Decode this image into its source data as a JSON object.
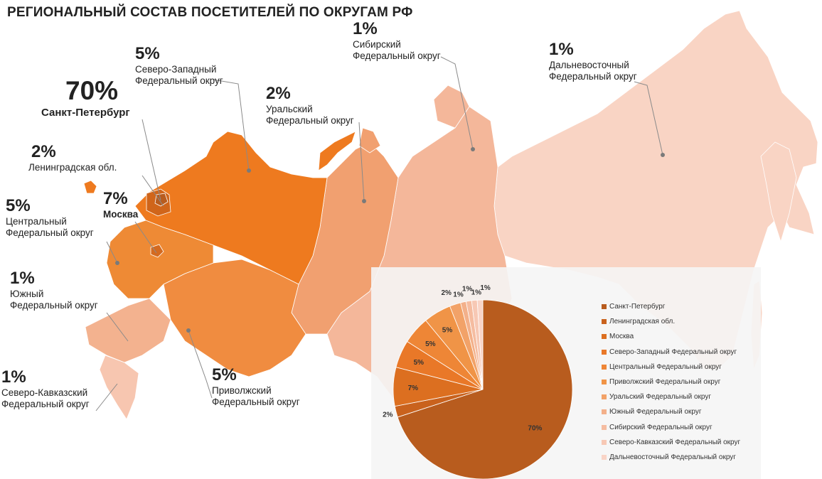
{
  "title": "РЕГИОНАЛЬНЫЙ СОСТАВ ПОСЕТИТЕЛЕЙ ПО ОКРУГАМ РФ",
  "colors": {
    "spb": "#b85c1e",
    "lenobl": "#d0651a",
    "moscow": "#d46a20",
    "nw": "#ee7a1f",
    "central": "#ee8a35",
    "volga": "#f08c40",
    "ural": "#f1a070",
    "south": "#f3b28f",
    "siberia": "#f4b79a",
    "ncauc": "#f7c6b0",
    "fareast": "#f9d4c4"
  },
  "callouts": {
    "spb": {
      "pct": "70%",
      "name": "Санкт-Петербург"
    },
    "lenobl": {
      "pct": "2%",
      "name": "Ленинградская обл."
    },
    "moscow": {
      "pct": "7%",
      "name": "Москва"
    },
    "nw": {
      "pct": "5%",
      "name1": "Северо-Западный",
      "name2": "Федеральный округ"
    },
    "central": {
      "pct": "5%",
      "name1": "Центральный",
      "name2": "Федеральный округ"
    },
    "south": {
      "pct": "1%",
      "name1": "Южный",
      "name2": "Федеральный округ"
    },
    "ncauc": {
      "pct": "1%",
      "name1": "Северо-Кавказский",
      "name2": "Федеральный округ"
    },
    "volga": {
      "pct": "5%",
      "name1": "Приволжский",
      "name2": "Федеральный округ"
    },
    "ural": {
      "pct": "2%",
      "name1": "Уральский",
      "name2": "Федеральный округ"
    },
    "siberia": {
      "pct": "1%",
      "name1": "Сибирский",
      "name2": "Федеральный округ"
    },
    "fareast": {
      "pct": "1%",
      "name1": "Дальневосточный",
      "name2": "Федеральный округ"
    }
  },
  "chart_data": {
    "type": "pie",
    "title": "",
    "slices": [
      {
        "label": "Санкт-Петербург",
        "value": 70,
        "display": "70%",
        "color": "#b85c1e"
      },
      {
        "label": "Ленинградская обл.",
        "value": 2,
        "display": "2%",
        "color": "#c9621d"
      },
      {
        "label": "Москва",
        "value": 7,
        "display": "7%",
        "color": "#dc6f20"
      },
      {
        "label": "Северо-Западный Федеральный округ",
        "value": 5,
        "display": "5%",
        "color": "#e97828"
      },
      {
        "label": "Центральный Федеральный округ",
        "value": 5,
        "display": "5%",
        "color": "#ee8636"
      },
      {
        "label": "Приволжский Федеральный округ",
        "value": 5,
        "display": "5%",
        "color": "#f09447"
      },
      {
        "label": "Уральский Федеральный округ",
        "value": 2,
        "display": "2%",
        "color": "#f2a268"
      },
      {
        "label": "Южный Федеральный округ",
        "value": 1,
        "display": "1%",
        "color": "#f3b08a"
      },
      {
        "label": "Сибирский Федеральный округ",
        "value": 1,
        "display": "1%",
        "color": "#f5bca0"
      },
      {
        "label": "Северо-Кавказский Федеральный округ",
        "value": 1,
        "display": "1%",
        "color": "#f7c8b4"
      },
      {
        "label": "Дальневосточный Федеральный округ",
        "value": 1,
        "display": "1%",
        "color": "#f9d4c6"
      }
    ],
    "legend_position": "right"
  }
}
